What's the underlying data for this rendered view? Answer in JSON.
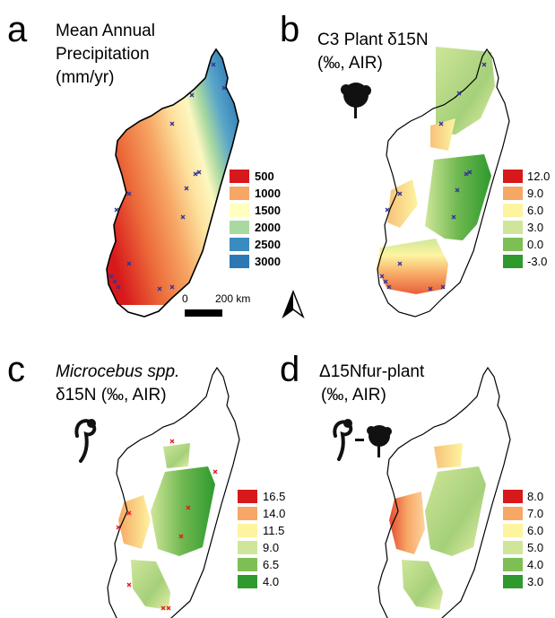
{
  "panels": [
    {
      "letter": "a",
      "title_lines": [
        "Mean Annual",
        "Precipitation",
        "(mm/yr)"
      ],
      "legend": [
        {
          "label": "500",
          "color": "#d7191c"
        },
        {
          "label": "1000",
          "color": "#f7a765"
        },
        {
          "label": "1500",
          "color": "#ffffbf"
        },
        {
          "label": "2000",
          "color": "#a9d9a0"
        },
        {
          "label": "2500",
          "color": "#3a8bc2"
        },
        {
          "label": "3000",
          "color": "#2b78b4"
        }
      ],
      "marker_color": "#333399"
    },
    {
      "letter": "b",
      "title_lines": [
        "C3 Plant δ15N",
        "(‰, AIR)"
      ],
      "legend": [
        {
          "label": "12.0",
          "color": "#d7191c"
        },
        {
          "label": "9.0",
          "color": "#f7a765"
        },
        {
          "label": "6.0",
          "color": "#fdf4a0"
        },
        {
          "label": "3.0",
          "color": "#cfe69a"
        },
        {
          "label": "0.0",
          "color": "#7dbf55"
        },
        {
          "label": "-3.0",
          "color": "#2e9a2e"
        }
      ],
      "icon": "tree-icon",
      "marker_color": "#333399"
    },
    {
      "letter": "c",
      "title_lines": [
        "Microcebus spp.",
        "δ15N (‰, AIR)"
      ],
      "legend": [
        {
          "label": "16.5",
          "color": "#d7191c"
        },
        {
          "label": "14.0",
          "color": "#f7a765"
        },
        {
          "label": "11.5",
          "color": "#fdf4a0"
        },
        {
          "label": "9.0",
          "color": "#cfe69a"
        },
        {
          "label": "6.5",
          "color": "#7dbf55"
        },
        {
          "label": "4.0",
          "color": "#2e9a2e"
        }
      ],
      "icon": "mouse-lemur-icon",
      "marker_color": "#e41a1c"
    },
    {
      "letter": "d",
      "title_lines": [
        "Δ15Nfur-plant",
        "(‰, AIR)"
      ],
      "legend": [
        {
          "label": "8.0",
          "color": "#d7191c"
        },
        {
          "label": "7.0",
          "color": "#f7a765"
        },
        {
          "label": "6.0",
          "color": "#fdf4a0"
        },
        {
          "label": "5.0",
          "color": "#cfe69a"
        },
        {
          "label": "4.0",
          "color": "#7dbf55"
        },
        {
          "label": "3.0",
          "color": "#2e9a2e"
        }
      ],
      "icon": "lemur-minus-tree-icon"
    }
  ],
  "scale_bar": {
    "start": "0",
    "end": "200 km"
  },
  "north_arrow": "north-arrow-icon"
}
